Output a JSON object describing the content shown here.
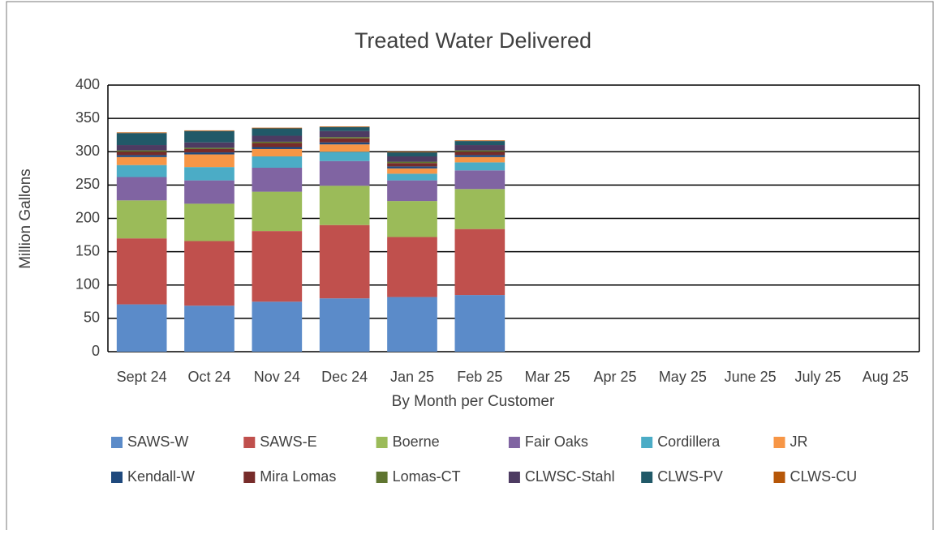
{
  "chart_data": {
    "type": "bar",
    "stacked": true,
    "title": "Treated Water Delivered",
    "x_label": "By Month per Customer",
    "y_label": "Million Gallons",
    "categories": [
      "Sept 24",
      "Oct 24",
      "Nov 24",
      "Dec 24",
      "Jan 25",
      "Feb 25",
      "Mar 25",
      "Apr 25",
      "May 25",
      "June 25",
      "July 25",
      "Aug 25"
    ],
    "ylim": [
      0,
      400
    ],
    "yticks": [
      0,
      50,
      100,
      150,
      200,
      250,
      300,
      350,
      400
    ],
    "grid": true,
    "series": [
      {
        "name": "SAWS-W",
        "color": "#5b8bc9",
        "values": [
          71,
          69,
          75,
          80,
          82,
          85,
          null,
          null,
          null,
          null,
          null,
          null
        ]
      },
      {
        "name": "SAWS-E",
        "color": "#c0504d",
        "values": [
          99,
          97,
          106,
          110,
          90,
          99,
          null,
          null,
          null,
          null,
          null,
          null
        ]
      },
      {
        "name": "Boerne",
        "color": "#9bbb59",
        "values": [
          57,
          56,
          59,
          59,
          54,
          60,
          null,
          null,
          null,
          null,
          null,
          null
        ]
      },
      {
        "name": "Fair Oaks",
        "color": "#8064a2",
        "values": [
          35,
          35,
          36,
          37,
          31,
          28,
          null,
          null,
          null,
          null,
          null,
          null
        ]
      },
      {
        "name": "Cordillera",
        "color": "#4bacc6",
        "values": [
          18,
          20,
          17,
          14,
          10,
          12,
          null,
          null,
          null,
          null,
          null,
          null
        ]
      },
      {
        "name": "JR",
        "color": "#f79646",
        "values": [
          12,
          19,
          11,
          11,
          8,
          8,
          null,
          null,
          null,
          null,
          null,
          null
        ]
      },
      {
        "name": "Kendall-W",
        "color": "#1f497d",
        "values": [
          3,
          3,
          3,
          3,
          3,
          3,
          null,
          null,
          null,
          null,
          null,
          null
        ]
      },
      {
        "name": "Mira Lomas",
        "color": "#772c2a",
        "values": [
          5,
          5,
          6,
          6,
          5,
          5,
          null,
          null,
          null,
          null,
          null,
          null
        ]
      },
      {
        "name": "Lomas-CT",
        "color": "#5f7530",
        "values": [
          2,
          2,
          2,
          2,
          2,
          2,
          null,
          null,
          null,
          null,
          null,
          null
        ]
      },
      {
        "name": "CLWSC-Stahl",
        "color": "#4d3b62",
        "values": [
          8,
          8,
          9,
          9,
          8,
          8,
          null,
          null,
          null,
          null,
          null,
          null
        ]
      },
      {
        "name": "CLWS-PV",
        "color": "#215968",
        "values": [
          18,
          17,
          11,
          6,
          6,
          6,
          null,
          null,
          null,
          null,
          null,
          null
        ]
      },
      {
        "name": "CLWS-CU",
        "color": "#b65708",
        "values": [
          1,
          1,
          1,
          1,
          1,
          1,
          null,
          null,
          null,
          null,
          null,
          null
        ]
      }
    ]
  }
}
